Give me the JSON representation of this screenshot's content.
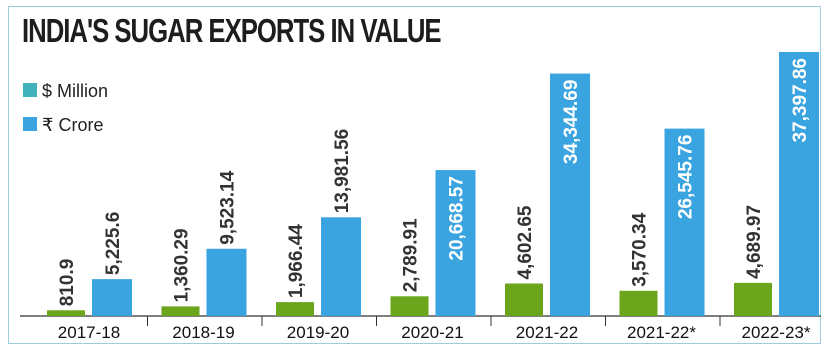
{
  "chart_data": {
    "type": "bar",
    "title": "INDIA'S SUGAR EXPORTS IN VALUE",
    "categories": [
      "2017-18",
      "2018-19",
      "2019-20",
      "2020-21",
      "2021-22",
      "2021-22*",
      "2022-23*"
    ],
    "series": [
      {
        "name": "$ Million",
        "values": [
          810.9,
          1360.29,
          1966.44,
          2789.91,
          4602.65,
          3570.34,
          4689.97
        ],
        "labels": [
          "810.9",
          "1,360.29",
          "1,966.44",
          "2,789.91",
          "4,602.65",
          "3,570.34",
          "4,689.97"
        ],
        "color": "#6aa51c",
        "legend_color": "#3fb3b9"
      },
      {
        "name": "₹ Crore",
        "values": [
          5225.6,
          9523.14,
          13981.56,
          20668.57,
          34344.69,
          26545.76,
          37397.86
        ],
        "labels": [
          "5,225.6",
          "9,523.14",
          "13,981.56",
          "20,668.57",
          "34,344.69",
          "26,545.76",
          "37,397.86"
        ],
        "color": "#3aa4e0",
        "legend_color": "#3aa4e0"
      }
    ],
    "xlabel": "",
    "ylabel": "",
    "ylim": [
      0,
      37397.86
    ],
    "grid": false,
    "legend_position": "top-left"
  }
}
